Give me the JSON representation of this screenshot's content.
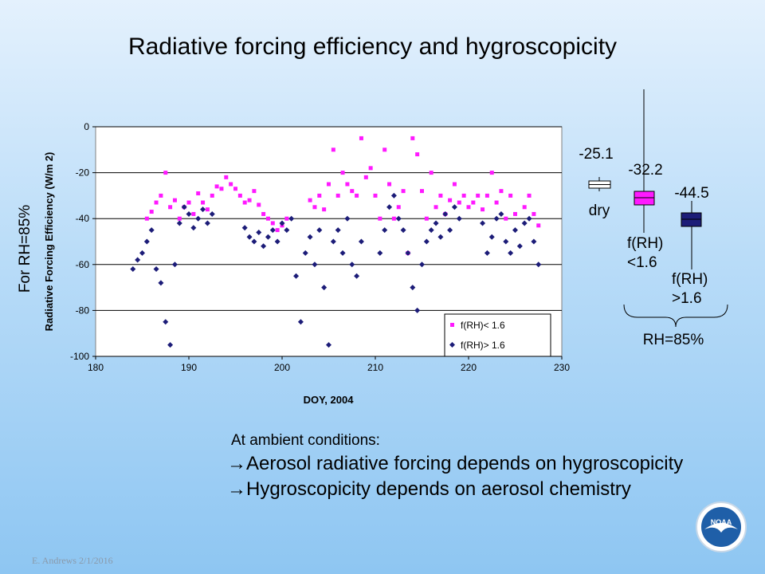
{
  "slide": {
    "title": "Radiative forcing efficiency and hygroscopicity",
    "side_label": "For RH=85%",
    "intro": "At ambient conditions:",
    "bullets": [
      "Aerosol radiative forcing depends on hygroscopicity",
      "Hygroscopicity depends on aerosol chemistry"
    ],
    "footer": "E. Andrews   2/1/2016",
    "logo_text": "NOAA"
  },
  "chart_data": [
    {
      "type": "scatter",
      "xlabel": "DOY, 2004",
      "ylabel": "Radiative Forcing Efficiency (W/m 2)",
      "xlim": [
        180,
        230
      ],
      "ylim": [
        -100,
        0
      ],
      "xticks": [
        180,
        190,
        200,
        210,
        220,
        230
      ],
      "yticks": [
        0,
        -20,
        -40,
        -60,
        -80,
        -100
      ],
      "grid": "horizontal",
      "legend_position": "bottom-right",
      "series": [
        {
          "name": "f(RH)< 1.6",
          "color": "#ff19ff",
          "marker": "square",
          "points": [
            [
              185.5,
              -40
            ],
            [
              186,
              -37
            ],
            [
              186.5,
              -33
            ],
            [
              187,
              -30
            ],
            [
              187.5,
              -20
            ],
            [
              188,
              -35
            ],
            [
              188.5,
              -32
            ],
            [
              189,
              -40
            ],
            [
              189.5,
              -35
            ],
            [
              190,
              -33
            ],
            [
              190.5,
              -38
            ],
            [
              191,
              -29
            ],
            [
              191.5,
              -33
            ],
            [
              192,
              -36
            ],
            [
              192.5,
              -30
            ],
            [
              193,
              -26
            ],
            [
              193.5,
              -27
            ],
            [
              194,
              -22
            ],
            [
              194.5,
              -25
            ],
            [
              195,
              -27
            ],
            [
              195.5,
              -30
            ],
            [
              196,
              -33
            ],
            [
              196.5,
              -32
            ],
            [
              197,
              -28
            ],
            [
              197.5,
              -34
            ],
            [
              198,
              -38
            ],
            [
              198.5,
              -40
            ],
            [
              199,
              -42
            ],
            [
              199.5,
              -45
            ],
            [
              200,
              -43
            ],
            [
              200.5,
              -40
            ],
            [
              203,
              -32
            ],
            [
              203.5,
              -35
            ],
            [
              204,
              -30
            ],
            [
              204.5,
              -36
            ],
            [
              205,
              -25
            ],
            [
              205.5,
              -10
            ],
            [
              206,
              -30
            ],
            [
              206.5,
              -20
            ],
            [
              207,
              -25
            ],
            [
              207.5,
              -28
            ],
            [
              208,
              -30
            ],
            [
              208.5,
              -5
            ],
            [
              209,
              -22
            ],
            [
              209.5,
              -18
            ],
            [
              210,
              -30
            ],
            [
              210.5,
              -40
            ],
            [
              211,
              -10
            ],
            [
              211.5,
              -25
            ],
            [
              212,
              -40
            ],
            [
              212.5,
              -35
            ],
            [
              213,
              -28
            ],
            [
              213.5,
              -55
            ],
            [
              214,
              -5
            ],
            [
              214.5,
              -12
            ],
            [
              215,
              -28
            ],
            [
              215.5,
              -40
            ],
            [
              216,
              -20
            ],
            [
              216.5,
              -35
            ],
            [
              217,
              -30
            ],
            [
              217.5,
              -38
            ],
            [
              218,
              -32
            ],
            [
              218.5,
              -25
            ],
            [
              219,
              -33
            ],
            [
              219.5,
              -30
            ],
            [
              220,
              -35
            ],
            [
              220.5,
              -33
            ],
            [
              221,
              -30
            ],
            [
              221.5,
              -36
            ],
            [
              222,
              -30
            ],
            [
              222.5,
              -20
            ],
            [
              223,
              -33
            ],
            [
              223.5,
              -28
            ],
            [
              224,
              -40
            ],
            [
              224.5,
              -30
            ],
            [
              225,
              -38
            ],
            [
              226,
              -35
            ],
            [
              226.5,
              -30
            ],
            [
              227,
              -38
            ],
            [
              227.5,
              -43
            ]
          ]
        },
        {
          "name": "f(RH)> 1.6",
          "color": "#1c1c78",
          "marker": "diamond",
          "points": [
            [
              184,
              -62
            ],
            [
              184.5,
              -58
            ],
            [
              185,
              -55
            ],
            [
              185.5,
              -50
            ],
            [
              186,
              -45
            ],
            [
              186.5,
              -62
            ],
            [
              187,
              -68
            ],
            [
              187.5,
              -85
            ],
            [
              188,
              -95
            ],
            [
              188.5,
              -60
            ],
            [
              189,
              -42
            ],
            [
              189.5,
              -35
            ],
            [
              190,
              -38
            ],
            [
              190.5,
              -44
            ],
            [
              191,
              -40
            ],
            [
              191.5,
              -36
            ],
            [
              192,
              -42
            ],
            [
              192.5,
              -38
            ],
            [
              196,
              -44
            ],
            [
              196.5,
              -48
            ],
            [
              197,
              -50
            ],
            [
              197.5,
              -46
            ],
            [
              198,
              -52
            ],
            [
              198.5,
              -48
            ],
            [
              199,
              -45
            ],
            [
              199.5,
              -50
            ],
            [
              200,
              -42
            ],
            [
              200.5,
              -45
            ],
            [
              201,
              -40
            ],
            [
              201.5,
              -65
            ],
            [
              202,
              -85
            ],
            [
              202.5,
              -55
            ],
            [
              203,
              -48
            ],
            [
              203.5,
              -60
            ],
            [
              204,
              -45
            ],
            [
              204.5,
              -70
            ],
            [
              205,
              -95
            ],
            [
              205.5,
              -50
            ],
            [
              206,
              -45
            ],
            [
              206.5,
              -55
            ],
            [
              207,
              -40
            ],
            [
              207.5,
              -60
            ],
            [
              208,
              -65
            ],
            [
              208.5,
              -50
            ],
            [
              210.5,
              -55
            ],
            [
              211,
              -45
            ],
            [
              211.5,
              -35
            ],
            [
              212,
              -30
            ],
            [
              212.5,
              -40
            ],
            [
              213,
              -45
            ],
            [
              213.5,
              -55
            ],
            [
              214,
              -70
            ],
            [
              214.5,
              -80
            ],
            [
              215,
              -60
            ],
            [
              215.5,
              -50
            ],
            [
              216,
              -45
            ],
            [
              216.5,
              -42
            ],
            [
              217,
              -48
            ],
            [
              217.5,
              -38
            ],
            [
              218,
              -45
            ],
            [
              218.5,
              -35
            ],
            [
              219,
              -40
            ],
            [
              221.5,
              -42
            ],
            [
              222,
              -55
            ],
            [
              222.5,
              -48
            ],
            [
              223,
              -40
            ],
            [
              223.5,
              -38
            ],
            [
              224,
              -50
            ],
            [
              224.5,
              -55
            ],
            [
              225,
              -45
            ],
            [
              225.5,
              -52
            ],
            [
              226,
              -42
            ],
            [
              226.5,
              -40
            ],
            [
              227,
              -50
            ],
            [
              227.5,
              -60
            ]
          ]
        }
      ]
    },
    {
      "type": "box",
      "categories": [
        "dry",
        "f(RH) <1.6",
        "f(RH) >1.6"
      ],
      "medians": [
        -25.1,
        -32.2,
        -44.5
      ],
      "colors": [
        "#ffffff",
        "#ff19ff",
        "#1c1c78"
      ],
      "group_label": "RH=85%"
    }
  ]
}
